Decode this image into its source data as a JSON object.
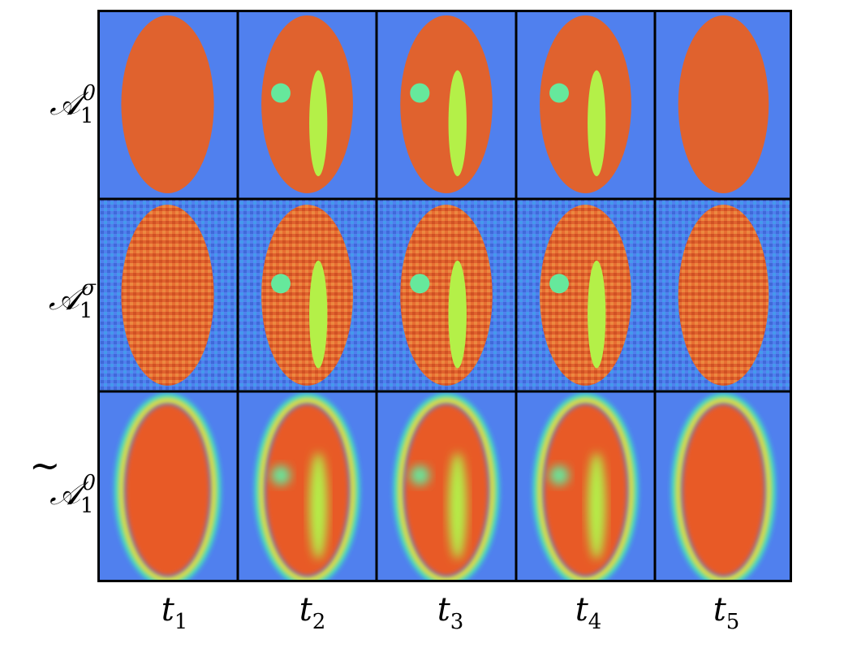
{
  "figure": {
    "rows": [
      {
        "base": "𝒜",
        "sub": "1",
        "sup": "0",
        "tilde": false,
        "noise": "none"
      },
      {
        "base": "𝒜",
        "sub": "1",
        "sup": "σ",
        "tilde": false,
        "noise": "gaussian"
      },
      {
        "base": "𝒜",
        "sub": "1",
        "sup": "0",
        "tilde": true,
        "noise": "smooth"
      }
    ],
    "columns": [
      {
        "var": "t",
        "sub": "1",
        "inclusions": false
      },
      {
        "var": "t",
        "sub": "2",
        "inclusions": true
      },
      {
        "var": "t",
        "sub": "3",
        "inclusions": true
      },
      {
        "var": "t",
        "sub": "4",
        "inclusions": true
      },
      {
        "var": "t",
        "sub": "5",
        "inclusions": false
      }
    ],
    "colors": {
      "background": "#5080ee",
      "ellipse": "#e0622e",
      "small_inclusion": "#66e89c",
      "bar_inclusion": "#b4f048",
      "ring": "#e6e040",
      "grid_border": "#000000"
    }
  }
}
